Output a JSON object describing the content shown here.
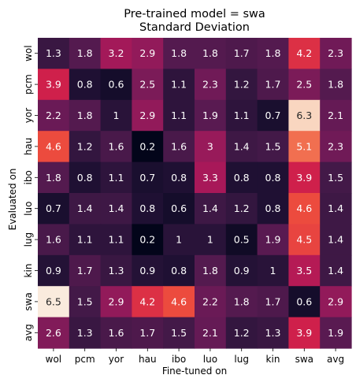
{
  "chart_data": {
    "type": "heatmap",
    "title": "Pre-trained model = swa",
    "subtitle": "Standard Deviation",
    "xlabel": "Fine-tuned on",
    "ylabel": "Evaluated on",
    "x_categories": [
      "wol",
      "pcm",
      "yor",
      "hau",
      "ibo",
      "luo",
      "lug",
      "kin",
      "swa",
      "avg"
    ],
    "y_categories": [
      "wol",
      "pcm",
      "yor",
      "hau",
      "ibo",
      "luo",
      "lug",
      "kin",
      "swa",
      "avg"
    ],
    "values": [
      [
        "1.3",
        "1.8",
        "3.2",
        "2.9",
        "1.8",
        "1.8",
        "1.7",
        "1.8",
        "4.2",
        "2.3"
      ],
      [
        "3.9",
        "0.8",
        "0.6",
        "2.5",
        "1.1",
        "2.3",
        "1.2",
        "1.7",
        "2.5",
        "1.8"
      ],
      [
        "2.2",
        "1.8",
        "1",
        "2.9",
        "1.1",
        "1.9",
        "1.1",
        "0.7",
        "6.3",
        "2.1"
      ],
      [
        "4.6",
        "1.2",
        "1.6",
        "0.2",
        "1.6",
        "3",
        "1.4",
        "1.5",
        "5.1",
        "2.3"
      ],
      [
        "1.8",
        "0.8",
        "1.1",
        "0.7",
        "0.8",
        "3.3",
        "0.8",
        "0.8",
        "3.9",
        "1.5"
      ],
      [
        "0.7",
        "1.4",
        "1.4",
        "0.8",
        "0.6",
        "1.4",
        "1.2",
        "0.8",
        "4.6",
        "1.4"
      ],
      [
        "1.6",
        "1.1",
        "1.1",
        "0.2",
        "1",
        "1",
        "0.5",
        "1.9",
        "4.5",
        "1.4"
      ],
      [
        "0.9",
        "1.7",
        "1.3",
        "0.9",
        "0.8",
        "1.8",
        "0.9",
        "1",
        "3.5",
        "1.4"
      ],
      [
        "6.5",
        "1.5",
        "2.9",
        "4.2",
        "4.6",
        "2.2",
        "1.8",
        "1.7",
        "0.6",
        "2.9"
      ],
      [
        "2.6",
        "1.3",
        "1.6",
        "1.7",
        "1.5",
        "2.1",
        "1.2",
        "1.3",
        "3.9",
        "1.9"
      ]
    ],
    "vmin": 0.2,
    "vmax": 6.5,
    "colormap": "rocket",
    "colorbar": false,
    "grid": false
  }
}
